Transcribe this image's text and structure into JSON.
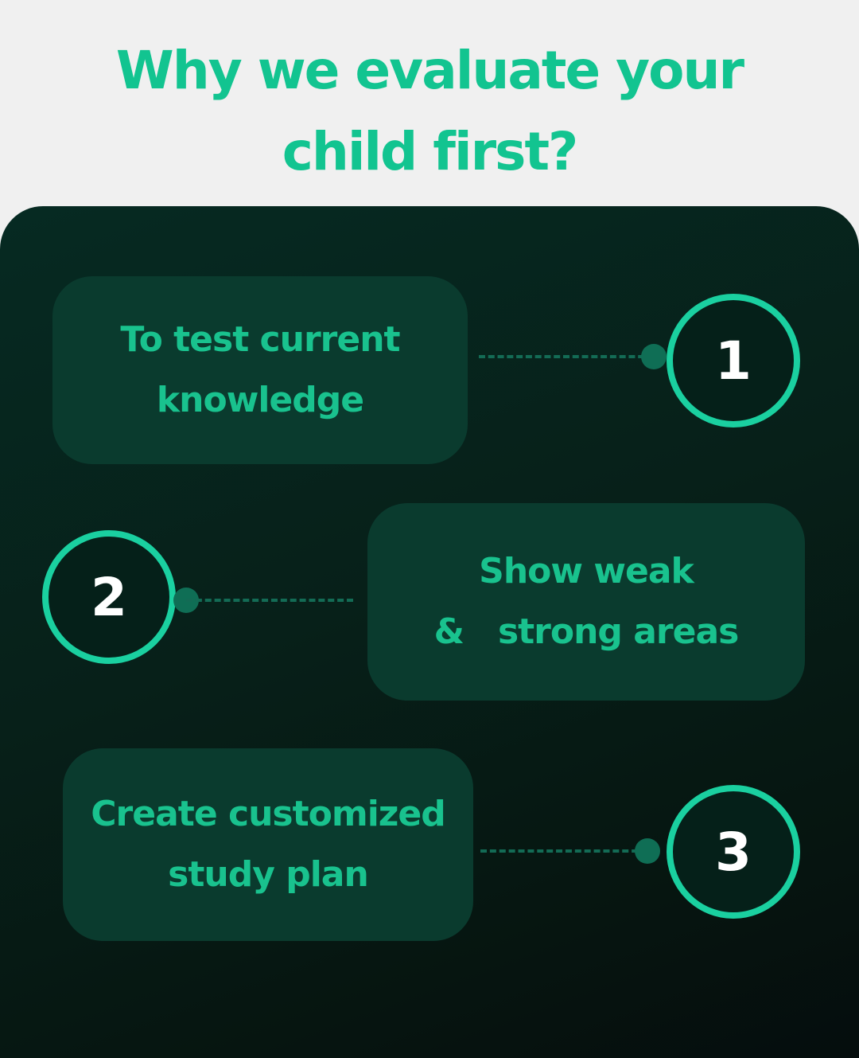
{
  "header": {
    "title_line1": "Why we evaluate your",
    "title_line2": "child first?"
  },
  "steps": [
    {
      "number": "1",
      "line1": "To test current",
      "line2": "knowledge"
    },
    {
      "number": "2",
      "line1": "Show weak",
      "line2": "&   strong areas"
    },
    {
      "number": "3",
      "line1": "Create customized",
      "line2": "study plan"
    }
  ],
  "colors": {
    "accent": "#12c490",
    "ring": "#1ad0a0",
    "panel": "#062a22",
    "card": "#0a3b2e",
    "connector": "#136b55",
    "page_background": "#f0f0f0"
  }
}
